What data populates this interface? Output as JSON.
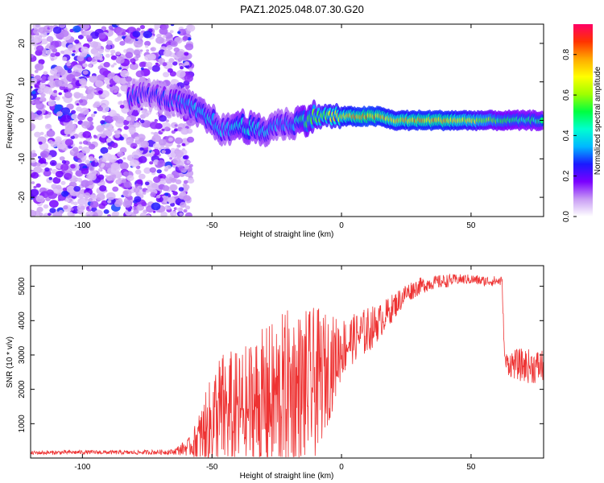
{
  "title": "PAZ1.2025.048.07.30.G20",
  "chart_data": [
    {
      "type": "heatmap",
      "xlabel": "Height of straight line (km)",
      "ylabel": "Frequency (Hz)",
      "xlim": [
        -120,
        78
      ],
      "ylim": [
        -25,
        25
      ],
      "xticks": [
        -100,
        -50,
        0,
        50
      ],
      "yticks": [
        -20,
        -10,
        0,
        10,
        20
      ],
      "colorbar": {
        "label": "Normalized spectral amplitude",
        "range": [
          0,
          0.95
        ],
        "ticks": [
          "0.0",
          "0.2",
          "0.4",
          "0.6",
          "0.8"
        ],
        "colors": [
          "#ffffff",
          "#c89cf4",
          "#7a00ff",
          "#1a1aff",
          "#00b8ff",
          "#00ffd0",
          "#00ff40",
          "#a0ff00",
          "#ffff00",
          "#ffaa00",
          "#ff3300",
          "#ff0066"
        ]
      },
      "ridge": [
        {
          "x": -82,
          "y": 6,
          "amp": 0.3
        },
        {
          "x": -75,
          "y": 7,
          "amp": 0.25
        },
        {
          "x": -65,
          "y": 5,
          "amp": 0.3
        },
        {
          "x": -60,
          "y": 4,
          "amp": 0.35
        },
        {
          "x": -55,
          "y": 2,
          "amp": 0.4
        },
        {
          "x": -50,
          "y": 0,
          "amp": 0.4
        },
        {
          "x": -45,
          "y": -3,
          "amp": 0.35
        },
        {
          "x": -40,
          "y": -1,
          "amp": 0.45
        },
        {
          "x": -35,
          "y": -2,
          "amp": 0.45
        },
        {
          "x": -30,
          "y": -3,
          "amp": 0.4
        },
        {
          "x": -25,
          "y": -1,
          "amp": 0.35
        },
        {
          "x": -20,
          "y": -1,
          "amp": 0.35
        },
        {
          "x": -15,
          "y": 0,
          "amp": 0.5
        },
        {
          "x": -10,
          "y": 1,
          "amp": 0.6
        },
        {
          "x": -5,
          "y": 1,
          "amp": 0.7
        },
        {
          "x": 0,
          "y": 1,
          "amp": 0.75
        },
        {
          "x": 5,
          "y": 1,
          "amp": 0.8
        },
        {
          "x": 10,
          "y": 1,
          "amp": 0.85
        },
        {
          "x": 15,
          "y": 1,
          "amp": 0.8
        },
        {
          "x": 20,
          "y": 0,
          "amp": 0.75
        },
        {
          "x": 30,
          "y": 0,
          "amp": 0.8
        },
        {
          "x": 40,
          "y": 0,
          "amp": 0.8
        },
        {
          "x": 50,
          "y": 0,
          "amp": 0.7
        },
        {
          "x": 60,
          "y": 0,
          "amp": 0.55
        },
        {
          "x": 70,
          "y": 0,
          "amp": 0.5
        },
        {
          "x": 78,
          "y": 0,
          "amp": 0.5
        }
      ]
    },
    {
      "type": "line",
      "xlabel": "Height of straight line (km)",
      "ylabel": "SNR (10 * v/v)",
      "xlim": [
        -120,
        78
      ],
      "ylim": [
        0,
        5600
      ],
      "xticks": [
        -100,
        -50,
        0,
        50
      ],
      "yticks": [
        1000,
        2000,
        3000,
        4000,
        5000
      ],
      "color": "#ee3333",
      "envelope": {
        "x": [
          -120,
          -100,
          -80,
          -65,
          -58,
          -52,
          -48,
          -44,
          -40,
          -35,
          -30,
          -25,
          -20,
          -15,
          -10,
          -5,
          0,
          5,
          10,
          15,
          20,
          25,
          30,
          35,
          40,
          45,
          50,
          55,
          60,
          62,
          63,
          65,
          70,
          75,
          78
        ],
        "mid": [
          150,
          170,
          160,
          180,
          350,
          800,
          1200,
          1400,
          1300,
          1500,
          1600,
          1700,
          1900,
          2000,
          2200,
          2600,
          3200,
          3500,
          3700,
          4000,
          4400,
          4800,
          5000,
          5100,
          5150,
          5200,
          5200,
          5150,
          5150,
          5100,
          2800,
          2750,
          2700,
          2650,
          2700
        ],
        "amp": [
          60,
          60,
          60,
          80,
          300,
          1200,
          1800,
          1800,
          1800,
          2000,
          2200,
          2400,
          2500,
          2300,
          2200,
          1600,
          900,
          700,
          700,
          500,
          400,
          300,
          250,
          200,
          200,
          150,
          150,
          150,
          150,
          150,
          250,
          400,
          500,
          500,
          500
        ]
      }
    }
  ]
}
